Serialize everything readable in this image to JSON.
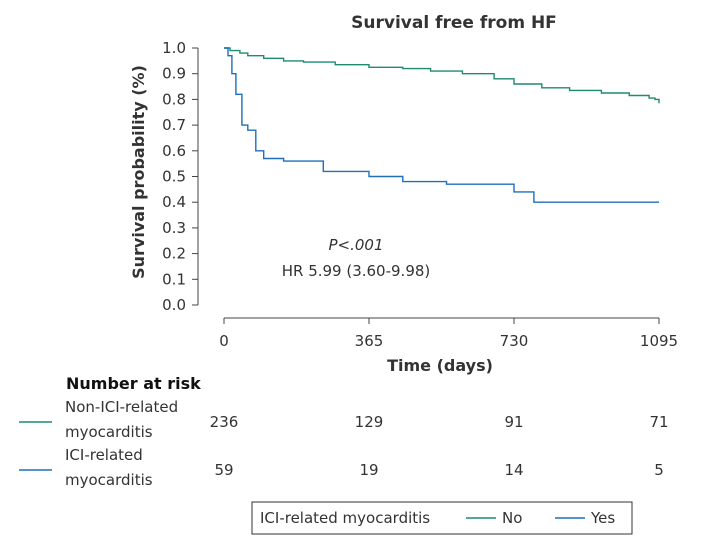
{
  "chart_data": {
    "type": "line",
    "title": "Survival free from HF",
    "xlabel": "Time (days)",
    "ylabel": "Survival probability  (%)",
    "xlim": [
      0,
      1095
    ],
    "ylim": [
      0.0,
      1.0
    ],
    "x_ticks": [
      "0",
      "365",
      "730",
      "1095"
    ],
    "x_tick_values": [
      0,
      365,
      730,
      1095
    ],
    "y_ticks": [
      "0.0",
      "0.1",
      "0.2",
      "0.3",
      "0.4",
      "0.5",
      "0.6",
      "0.7",
      "0.8",
      "0.9",
      "1.0"
    ],
    "y_tick_values": [
      0.0,
      0.1,
      0.2,
      0.3,
      0.4,
      0.5,
      0.6,
      0.7,
      0.8,
      0.9,
      1.0
    ],
    "grid": false,
    "annotations": {
      "p_value": "P<.001",
      "hazard_ratio": "HR 5.99 (3.60-9.98)"
    },
    "series": [
      {
        "name": "No",
        "color": "#1e8a70",
        "points": [
          [
            0,
            1.0
          ],
          [
            15,
            0.99
          ],
          [
            40,
            0.98
          ],
          [
            60,
            0.97
          ],
          [
            100,
            0.96
          ],
          [
            150,
            0.95
          ],
          [
            200,
            0.945
          ],
          [
            280,
            0.935
          ],
          [
            365,
            0.925
          ],
          [
            450,
            0.92
          ],
          [
            520,
            0.91
          ],
          [
            600,
            0.9
          ],
          [
            680,
            0.88
          ],
          [
            730,
            0.86
          ],
          [
            800,
            0.845
          ],
          [
            870,
            0.835
          ],
          [
            950,
            0.825
          ],
          [
            1020,
            0.815
          ],
          [
            1070,
            0.805
          ],
          [
            1085,
            0.8
          ],
          [
            1095,
            0.785
          ]
        ]
      },
      {
        "name": "Yes",
        "color": "#1f6fbb",
        "points": [
          [
            0,
            1.0
          ],
          [
            10,
            0.97
          ],
          [
            20,
            0.9
          ],
          [
            30,
            0.82
          ],
          [
            45,
            0.7
          ],
          [
            60,
            0.68
          ],
          [
            80,
            0.6
          ],
          [
            100,
            0.57
          ],
          [
            150,
            0.56
          ],
          [
            250,
            0.52
          ],
          [
            365,
            0.5
          ],
          [
            450,
            0.48
          ],
          [
            560,
            0.47
          ],
          [
            650,
            0.47
          ],
          [
            730,
            0.44
          ],
          [
            780,
            0.4
          ],
          [
            1095,
            0.4
          ]
        ]
      }
    ]
  },
  "risk_table": {
    "title": "Number at risk",
    "rows": [
      {
        "label_line1": "Non-ICI-related",
        "label_line2": "myocarditis",
        "color": "#1e8a70",
        "values": [
          "236",
          "129",
          "91",
          "71"
        ]
      },
      {
        "label_line1": "ICI-related",
        "label_line2": "myocarditis",
        "color": "#1f6fbb",
        "values": [
          "59",
          "19",
          "14",
          "5"
        ]
      }
    ]
  },
  "legend": {
    "title": "ICI-related myocarditis",
    "items": [
      {
        "label": "No",
        "color": "#1e8a70"
      },
      {
        "label": "Yes",
        "color": "#1f6fbb"
      }
    ]
  }
}
